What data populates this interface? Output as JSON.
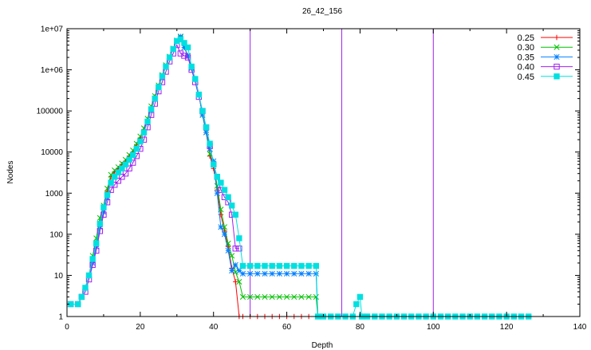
{
  "chart_data": {
    "type": "line",
    "title": "26_42_156",
    "xlabel": "Depth",
    "ylabel": "Nodes",
    "xlim": [
      0,
      140
    ],
    "ylim": [
      1,
      10000000
    ],
    "y_scale": "log",
    "x_ticks": [
      0,
      20,
      40,
      60,
      80,
      100,
      120,
      140
    ],
    "y_ticks": [
      1,
      10,
      100,
      1000,
      10000,
      100000,
      1000000,
      10000000
    ],
    "x_tick_labels": [
      "0",
      "20",
      "40",
      "60",
      "80",
      "100",
      "120",
      "140"
    ],
    "y_tick_labels": [
      "1",
      "10",
      "100",
      "1000",
      "10000",
      "100000",
      "1e+06",
      "1e+07"
    ],
    "grid": false,
    "legend_position": "top-right",
    "vertical_lines": {
      "x": [
        50,
        75,
        100
      ],
      "color": "#a020f0"
    },
    "series": [
      {
        "name": "0.25",
        "color": "#ff0000",
        "marker": "plus",
        "points": [
          [
            1,
            2
          ],
          [
            3,
            2
          ],
          [
            4,
            3
          ],
          [
            5,
            5
          ],
          [
            6,
            10
          ],
          [
            7,
            25
          ],
          [
            8,
            60
          ],
          [
            9,
            200
          ],
          [
            10,
            450
          ],
          [
            11,
            1100
          ],
          [
            12,
            2500
          ],
          [
            13,
            3300
          ],
          [
            14,
            4000
          ],
          [
            15,
            5000
          ],
          [
            16,
            6000
          ],
          [
            17,
            8000
          ],
          [
            18,
            10000
          ],
          [
            19,
            15000
          ],
          [
            20,
            22000
          ],
          [
            21,
            35000
          ],
          [
            22,
            60000
          ],
          [
            23,
            120000
          ],
          [
            24,
            220000
          ],
          [
            25,
            400000
          ],
          [
            26,
            700000
          ],
          [
            27,
            1200000
          ],
          [
            28,
            2000000
          ],
          [
            29,
            3200000
          ],
          [
            30,
            5000000
          ],
          [
            31,
            6000000
          ],
          [
            32,
            3500000
          ],
          [
            33,
            2200000
          ],
          [
            34,
            1100000
          ],
          [
            35,
            600000
          ],
          [
            36,
            250000
          ],
          [
            37,
            80000
          ],
          [
            38,
            30000
          ],
          [
            39,
            8000
          ],
          [
            40,
            4000
          ],
          [
            41,
            1200
          ],
          [
            42,
            300
          ],
          [
            43,
            120
          ],
          [
            44,
            50
          ],
          [
            45,
            15
          ],
          [
            46,
            7
          ],
          [
            47,
            1
          ],
          [
            48,
            1
          ],
          [
            50,
            1
          ],
          [
            52,
            1
          ],
          [
            54,
            1
          ],
          [
            56,
            1
          ],
          [
            58,
            1
          ],
          [
            60,
            1
          ],
          [
            62,
            1
          ],
          [
            64,
            1
          ],
          [
            66,
            1
          ],
          [
            68,
            1
          ]
        ]
      },
      {
        "name": "0.30",
        "color": "#00c000",
        "marker": "x",
        "points": [
          [
            1,
            2
          ],
          [
            3,
            2
          ],
          [
            4,
            3
          ],
          [
            5,
            5
          ],
          [
            6,
            10
          ],
          [
            7,
            30
          ],
          [
            8,
            80
          ],
          [
            9,
            250
          ],
          [
            10,
            500
          ],
          [
            11,
            1300
          ],
          [
            12,
            2800
          ],
          [
            13,
            3600
          ],
          [
            14,
            4300
          ],
          [
            15,
            5300
          ],
          [
            16,
            6500
          ],
          [
            17,
            8500
          ],
          [
            18,
            11000
          ],
          [
            19,
            16000
          ],
          [
            20,
            24000
          ],
          [
            21,
            38000
          ],
          [
            22,
            65000
          ],
          [
            23,
            130000
          ],
          [
            24,
            230000
          ],
          [
            25,
            420000
          ],
          [
            26,
            750000
          ],
          [
            27,
            1300000
          ],
          [
            28,
            2100000
          ],
          [
            29,
            3300000
          ],
          [
            30,
            5200000
          ],
          [
            31,
            6200000
          ],
          [
            32,
            3500000
          ],
          [
            33,
            2200000
          ],
          [
            34,
            1100000
          ],
          [
            35,
            600000
          ],
          [
            36,
            250000
          ],
          [
            37,
            80000
          ],
          [
            38,
            30000
          ],
          [
            39,
            9000
          ],
          [
            40,
            5000
          ],
          [
            41,
            1500
          ],
          [
            42,
            400
          ],
          [
            43,
            150
          ],
          [
            44,
            60
          ],
          [
            45,
            30
          ],
          [
            46,
            12
          ],
          [
            47,
            7
          ],
          [
            48,
            3
          ],
          [
            50,
            3
          ],
          [
            52,
            3
          ],
          [
            54,
            3
          ],
          [
            56,
            3
          ],
          [
            58,
            3
          ],
          [
            60,
            3
          ],
          [
            62,
            3
          ],
          [
            64,
            3
          ],
          [
            66,
            3
          ],
          [
            68,
            3
          ],
          [
            68.5,
            1
          ]
        ]
      },
      {
        "name": "0.35",
        "color": "#0080ff",
        "marker": "star",
        "points": [
          [
            1,
            2
          ],
          [
            3,
            2
          ],
          [
            4,
            3
          ],
          [
            5,
            5
          ],
          [
            6,
            10
          ],
          [
            7,
            20
          ],
          [
            8,
            50
          ],
          [
            9,
            150
          ],
          [
            10,
            350
          ],
          [
            11,
            800
          ],
          [
            12,
            1800
          ],
          [
            13,
            2500
          ],
          [
            14,
            3200
          ],
          [
            15,
            4000
          ],
          [
            16,
            5000
          ],
          [
            17,
            6500
          ],
          [
            18,
            8500
          ],
          [
            19,
            12000
          ],
          [
            20,
            18000
          ],
          [
            21,
            30000
          ],
          [
            22,
            55000
          ],
          [
            23,
            110000
          ],
          [
            24,
            200000
          ],
          [
            25,
            380000
          ],
          [
            26,
            700000
          ],
          [
            27,
            1200000
          ],
          [
            28,
            2000000
          ],
          [
            29,
            3200000
          ],
          [
            30,
            5000000
          ],
          [
            31,
            6500000
          ],
          [
            32,
            3500000
          ],
          [
            33,
            2200000
          ],
          [
            34,
            1100000
          ],
          [
            35,
            600000
          ],
          [
            36,
            250000
          ],
          [
            37,
            80000
          ],
          [
            38,
            30000
          ],
          [
            39,
            12000
          ],
          [
            40,
            6000
          ],
          [
            41,
            1000
          ],
          [
            42,
            150
          ],
          [
            43,
            100
          ],
          [
            44,
            40
          ],
          [
            45,
            13
          ],
          [
            46,
            18
          ],
          [
            47,
            13
          ],
          [
            48,
            11
          ],
          [
            50,
            11
          ],
          [
            52,
            11
          ],
          [
            54,
            11
          ],
          [
            56,
            11
          ],
          [
            58,
            11
          ],
          [
            60,
            11
          ],
          [
            62,
            11
          ],
          [
            64,
            11
          ],
          [
            66,
            11
          ],
          [
            68,
            11
          ],
          [
            68.5,
            1
          ]
        ]
      },
      {
        "name": "0.40",
        "color": "#a020f0",
        "marker": "square-open",
        "points": [
          [
            1,
            2
          ],
          [
            3,
            2
          ],
          [
            4,
            3
          ],
          [
            5,
            4
          ],
          [
            6,
            8
          ],
          [
            7,
            18
          ],
          [
            8,
            40
          ],
          [
            9,
            120
          ],
          [
            10,
            300
          ],
          [
            11,
            600
          ],
          [
            12,
            1200
          ],
          [
            13,
            1600
          ],
          [
            14,
            2000
          ],
          [
            15,
            2500
          ],
          [
            16,
            3000
          ],
          [
            17,
            4000
          ],
          [
            18,
            5500
          ],
          [
            19,
            8000
          ],
          [
            20,
            12000
          ],
          [
            21,
            20000
          ],
          [
            22,
            40000
          ],
          [
            23,
            80000
          ],
          [
            24,
            150000
          ],
          [
            25,
            300000
          ],
          [
            26,
            500000
          ],
          [
            27,
            900000
          ],
          [
            28,
            1600000
          ],
          [
            29,
            2500000
          ],
          [
            30,
            4000000
          ],
          [
            31,
            2500000
          ],
          [
            32,
            2200000
          ],
          [
            33,
            2000000
          ],
          [
            34,
            1000000
          ],
          [
            35,
            500000
          ],
          [
            36,
            220000
          ],
          [
            37,
            100000
          ],
          [
            38,
            40000
          ],
          [
            39,
            14000
          ],
          [
            40,
            5000
          ],
          [
            41,
            2500
          ],
          [
            42,
            1200
          ],
          [
            43,
            800
          ],
          [
            44,
            600
          ],
          [
            45,
            300
          ],
          [
            46,
            45
          ],
          [
            47,
            45
          ]
        ]
      },
      {
        "name": "0.45",
        "color": "#00e0e0",
        "marker": "square-filled",
        "points": [
          [
            1,
            2
          ],
          [
            3,
            2
          ],
          [
            4,
            3
          ],
          [
            5,
            5
          ],
          [
            6,
            10
          ],
          [
            7,
            25
          ],
          [
            8,
            60
          ],
          [
            9,
            180
          ],
          [
            10,
            450
          ],
          [
            11,
            900
          ],
          [
            12,
            1800
          ],
          [
            13,
            2500
          ],
          [
            14,
            3200
          ],
          [
            15,
            4000
          ],
          [
            16,
            5000
          ],
          [
            17,
            6500
          ],
          [
            18,
            8500
          ],
          [
            19,
            12000
          ],
          [
            20,
            18000
          ],
          [
            21,
            30000
          ],
          [
            22,
            55000
          ],
          [
            23,
            110000
          ],
          [
            24,
            200000
          ],
          [
            25,
            380000
          ],
          [
            26,
            700000
          ],
          [
            27,
            1200000
          ],
          [
            28,
            2000000
          ],
          [
            29,
            3200000
          ],
          [
            30,
            5000000
          ],
          [
            31,
            5500000
          ],
          [
            32,
            4500000
          ],
          [
            33,
            3500000
          ],
          [
            34,
            1200000
          ],
          [
            35,
            600000
          ],
          [
            36,
            250000
          ],
          [
            37,
            100000
          ],
          [
            38,
            40000
          ],
          [
            39,
            16000
          ],
          [
            40,
            5000
          ],
          [
            41,
            2500
          ],
          [
            42,
            1800
          ],
          [
            43,
            1200
          ],
          [
            44,
            800
          ],
          [
            45,
            500
          ],
          [
            46,
            300
          ],
          [
            47,
            80
          ],
          [
            48,
            17
          ],
          [
            50,
            17
          ],
          [
            52,
            17
          ],
          [
            54,
            17
          ],
          [
            56,
            17
          ],
          [
            58,
            17
          ],
          [
            60,
            17
          ],
          [
            62,
            17
          ],
          [
            64,
            17
          ],
          [
            66,
            17
          ],
          [
            68,
            17
          ],
          [
            68.5,
            1
          ],
          [
            70,
            1
          ],
          [
            72,
            1
          ],
          [
            74,
            1
          ],
          [
            76,
            1
          ],
          [
            78,
            1
          ],
          [
            79,
            2
          ],
          [
            80,
            3
          ],
          [
            80.5,
            1
          ],
          [
            82,
            1
          ],
          [
            84,
            1
          ],
          [
            86,
            1
          ],
          [
            88,
            1
          ],
          [
            90,
            1
          ],
          [
            92,
            1
          ],
          [
            94,
            1
          ],
          [
            96,
            1
          ],
          [
            98,
            1
          ],
          [
            100,
            1
          ],
          [
            102,
            1
          ],
          [
            104,
            1
          ],
          [
            106,
            1
          ],
          [
            108,
            1
          ],
          [
            110,
            1
          ],
          [
            112,
            1
          ],
          [
            114,
            1
          ],
          [
            116,
            1
          ],
          [
            118,
            1
          ],
          [
            120,
            1
          ],
          [
            122,
            1
          ],
          [
            124,
            1
          ],
          [
            126,
            1
          ]
        ]
      }
    ]
  }
}
